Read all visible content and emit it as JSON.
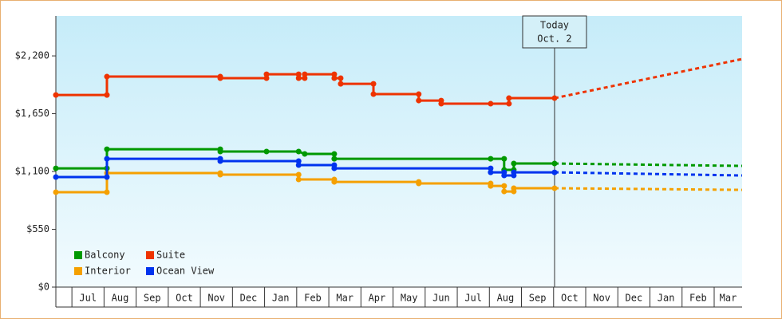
{
  "chart_data": {
    "type": "line",
    "xlim": [
      0.5,
      21.87
    ],
    "xticks": [
      {
        "value": 1,
        "label": "Jul"
      },
      {
        "value": 2,
        "label": "Aug"
      },
      {
        "value": 3,
        "label": "Sep"
      },
      {
        "value": 4,
        "label": "Oct"
      },
      {
        "value": 5,
        "label": "Nov"
      },
      {
        "value": 6,
        "label": "Dec"
      },
      {
        "value": 7,
        "label": "Jan"
      },
      {
        "value": 8,
        "label": "Feb"
      },
      {
        "value": 9,
        "label": "Mar"
      },
      {
        "value": 10,
        "label": "Apr"
      },
      {
        "value": 11,
        "label": "May"
      },
      {
        "value": 12,
        "label": "Jun"
      },
      {
        "value": 13,
        "label": "Jul"
      },
      {
        "value": 14,
        "label": "Aug"
      },
      {
        "value": 15,
        "label": "Sep"
      },
      {
        "value": 16,
        "label": "Oct"
      },
      {
        "value": 17,
        "label": "Nov"
      },
      {
        "value": 18,
        "label": "Dec"
      },
      {
        "value": 19,
        "label": "Jan"
      },
      {
        "value": 20,
        "label": "Feb"
      },
      {
        "value": 21,
        "label": "Mar"
      }
    ],
    "ylim": [
      0,
      2580
    ],
    "yticks": [
      {
        "value": 0,
        "label": "$0"
      },
      {
        "value": 550,
        "label": "$550"
      },
      {
        "value": 1100,
        "label": "$1,100"
      },
      {
        "value": 1650,
        "label": "$1,650"
      },
      {
        "value": 2200,
        "label": "$2,200"
      }
    ],
    "today": {
      "x": 16.03,
      "label": [
        "Today",
        "Oct. 2"
      ]
    },
    "legend": "lower left",
    "series": [
      {
        "name": "Balcony",
        "color": "#009900",
        "x": [
          0.5,
          2.09,
          2.09,
          5.62,
          5.62,
          7.06,
          8.06,
          8.25,
          9.17,
          9.17,
          14.04,
          14.46,
          14.46,
          14.76,
          14.76,
          16.03
        ],
        "values": [
          1130,
          1130,
          1312,
          1312,
          1290,
          1290,
          1290,
          1267,
          1267,
          1221,
          1221,
          1221,
          1115,
          1115,
          1176,
          1176
        ],
        "forecast": {
          "x": [
            16.03,
            21.87
          ],
          "values": [
            1176,
            1153
          ]
        }
      },
      {
        "name": "Suite",
        "color": "#ee3300",
        "x": [
          0.5,
          2.09,
          2.09,
          5.62,
          5.62,
          7.06,
          7.06,
          8.06,
          8.06,
          8.25,
          8.25,
          9.17,
          9.17,
          9.37,
          9.37,
          10.39,
          10.39,
          11.8,
          11.8,
          12.5,
          12.5,
          14.04,
          14.61,
          14.61,
          16.03
        ],
        "values": [
          1828,
          1828,
          2003,
          2003,
          1988,
          1988,
          2025,
          2025,
          1988,
          1988,
          2025,
          2025,
          1988,
          1988,
          1934,
          1934,
          1836,
          1836,
          1775,
          1775,
          1745,
          1745,
          1745,
          1798,
          1798
        ],
        "forecast": {
          "x": [
            16.03,
            21.87
          ],
          "values": [
            1798,
            2170
          ]
        }
      },
      {
        "name": "Interior",
        "color": "#f5a000",
        "x": [
          0.5,
          2.09,
          2.09,
          5.62,
          5.62,
          8.06,
          8.06,
          9.17,
          9.17,
          11.8,
          11.8,
          14.04,
          14.04,
          14.46,
          14.46,
          14.76,
          14.76,
          16.03
        ],
        "values": [
          903,
          903,
          1085,
          1085,
          1070,
          1070,
          1024,
          1024,
          1001,
          1001,
          986,
          986,
          963,
          963,
          910,
          910,
          941,
          941
        ],
        "forecast": {
          "x": [
            16.03,
            21.87
          ],
          "values": [
            941,
            925
          ]
        }
      },
      {
        "name": "Ocean View",
        "color": "#0033ee",
        "x": [
          0.5,
          2.09,
          2.09,
          5.62,
          5.62,
          8.06,
          8.06,
          9.17,
          9.17,
          14.04,
          14.04,
          14.46,
          14.46,
          14.76,
          14.76,
          16.03
        ],
        "values": [
          1047,
          1047,
          1221,
          1221,
          1199,
          1199,
          1161,
          1161,
          1130,
          1130,
          1092,
          1092,
          1062,
          1062,
          1092,
          1092
        ],
        "forecast": {
          "x": [
            16.03,
            21.87
          ],
          "values": [
            1092,
            1062
          ]
        }
      }
    ]
  }
}
